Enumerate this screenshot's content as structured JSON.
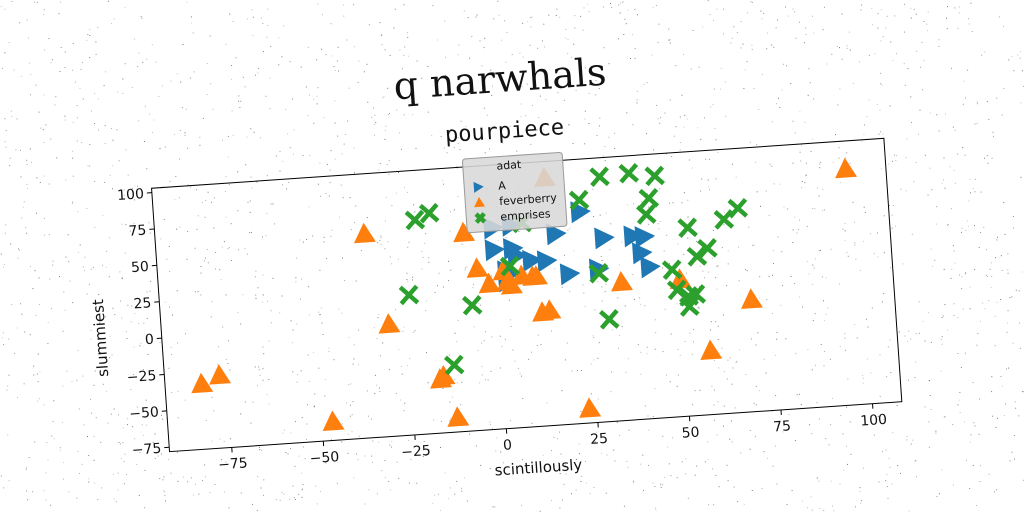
{
  "suptitle": "q narwhals",
  "chart_data": {
    "type": "scatter",
    "title": "pourpiece",
    "xlabel": "scintillously",
    "ylabel": "slummiest",
    "xlim": [
      -92,
      108
    ],
    "ylim": [
      -78,
      103
    ],
    "xticks": [
      -75,
      -50,
      -25,
      0,
      25,
      50,
      75,
      100
    ],
    "yticks": [
      -75,
      -50,
      -25,
      0,
      25,
      50,
      75,
      100
    ],
    "grid": false,
    "legend": {
      "title": "adat",
      "placement": "top-center"
    },
    "series": [
      {
        "name": "A",
        "marker": "triangle-right",
        "color": "#1f77b4",
        "points": [
          [
            0,
            60
          ],
          [
            5,
            61
          ],
          [
            17,
            53
          ],
          [
            24,
            67
          ],
          [
            30,
            48
          ],
          [
            38,
            48
          ],
          [
            41,
            47
          ],
          [
            0,
            45
          ],
          [
            5,
            45
          ],
          [
            6,
            40
          ],
          [
            10,
            36
          ],
          [
            14,
            35
          ],
          [
            20,
            25
          ],
          [
            28,
            27
          ],
          [
            40,
            36
          ],
          [
            42,
            26
          ],
          [
            4,
            28
          ],
          [
            3,
            23
          ],
          [
            3,
            30
          ]
        ]
      },
      {
        "name": "feverberry",
        "marker": "triangle-up",
        "color": "#ff7f0e",
        "points": [
          [
            15,
            92
          ],
          [
            97,
            84
          ],
          [
            -35,
            62
          ],
          [
            -8,
            58
          ],
          [
            -5,
            33
          ],
          [
            -2,
            22
          ],
          [
            2,
            30
          ],
          [
            3,
            23
          ],
          [
            4,
            20
          ],
          [
            7,
            26
          ],
          [
            10,
            25
          ],
          [
            11,
            25
          ],
          [
            12,
            0
          ],
          [
            14,
            1
          ],
          [
            34,
            17
          ],
          [
            50,
            16
          ],
          [
            69,
            -1
          ],
          [
            57,
            -34
          ],
          [
            -30,
            -1
          ],
          [
            -17,
            -41
          ],
          [
            -16,
            -39
          ],
          [
            -13,
            -68
          ],
          [
            23,
            -68
          ],
          [
            -47,
            -65
          ],
          [
            -82,
            -33
          ],
          [
            -77,
            -28
          ]
        ]
      },
      {
        "name": "emprises",
        "marker": "x",
        "color": "#2ca02c",
        "points": [
          [
            30,
            90
          ],
          [
            38,
            91
          ],
          [
            45,
            88
          ],
          [
            24,
            75
          ],
          [
            43,
            73
          ],
          [
            -21,
            69
          ],
          [
            -17,
            73
          ],
          [
            42,
            62
          ],
          [
            8,
            62
          ],
          [
            53,
            51
          ],
          [
            63,
            55
          ],
          [
            67,
            62
          ],
          [
            55,
            31
          ],
          [
            58,
            36
          ],
          [
            48,
            23
          ],
          [
            28,
            24
          ],
          [
            -24,
            18
          ],
          [
            -7,
            8
          ],
          [
            4,
            33
          ],
          [
            49,
            9
          ],
          [
            52,
            4
          ],
          [
            54,
            5
          ],
          [
            52,
            -3
          ],
          [
            30,
            -8
          ],
          [
            -13,
            -32
          ]
        ]
      }
    ]
  }
}
